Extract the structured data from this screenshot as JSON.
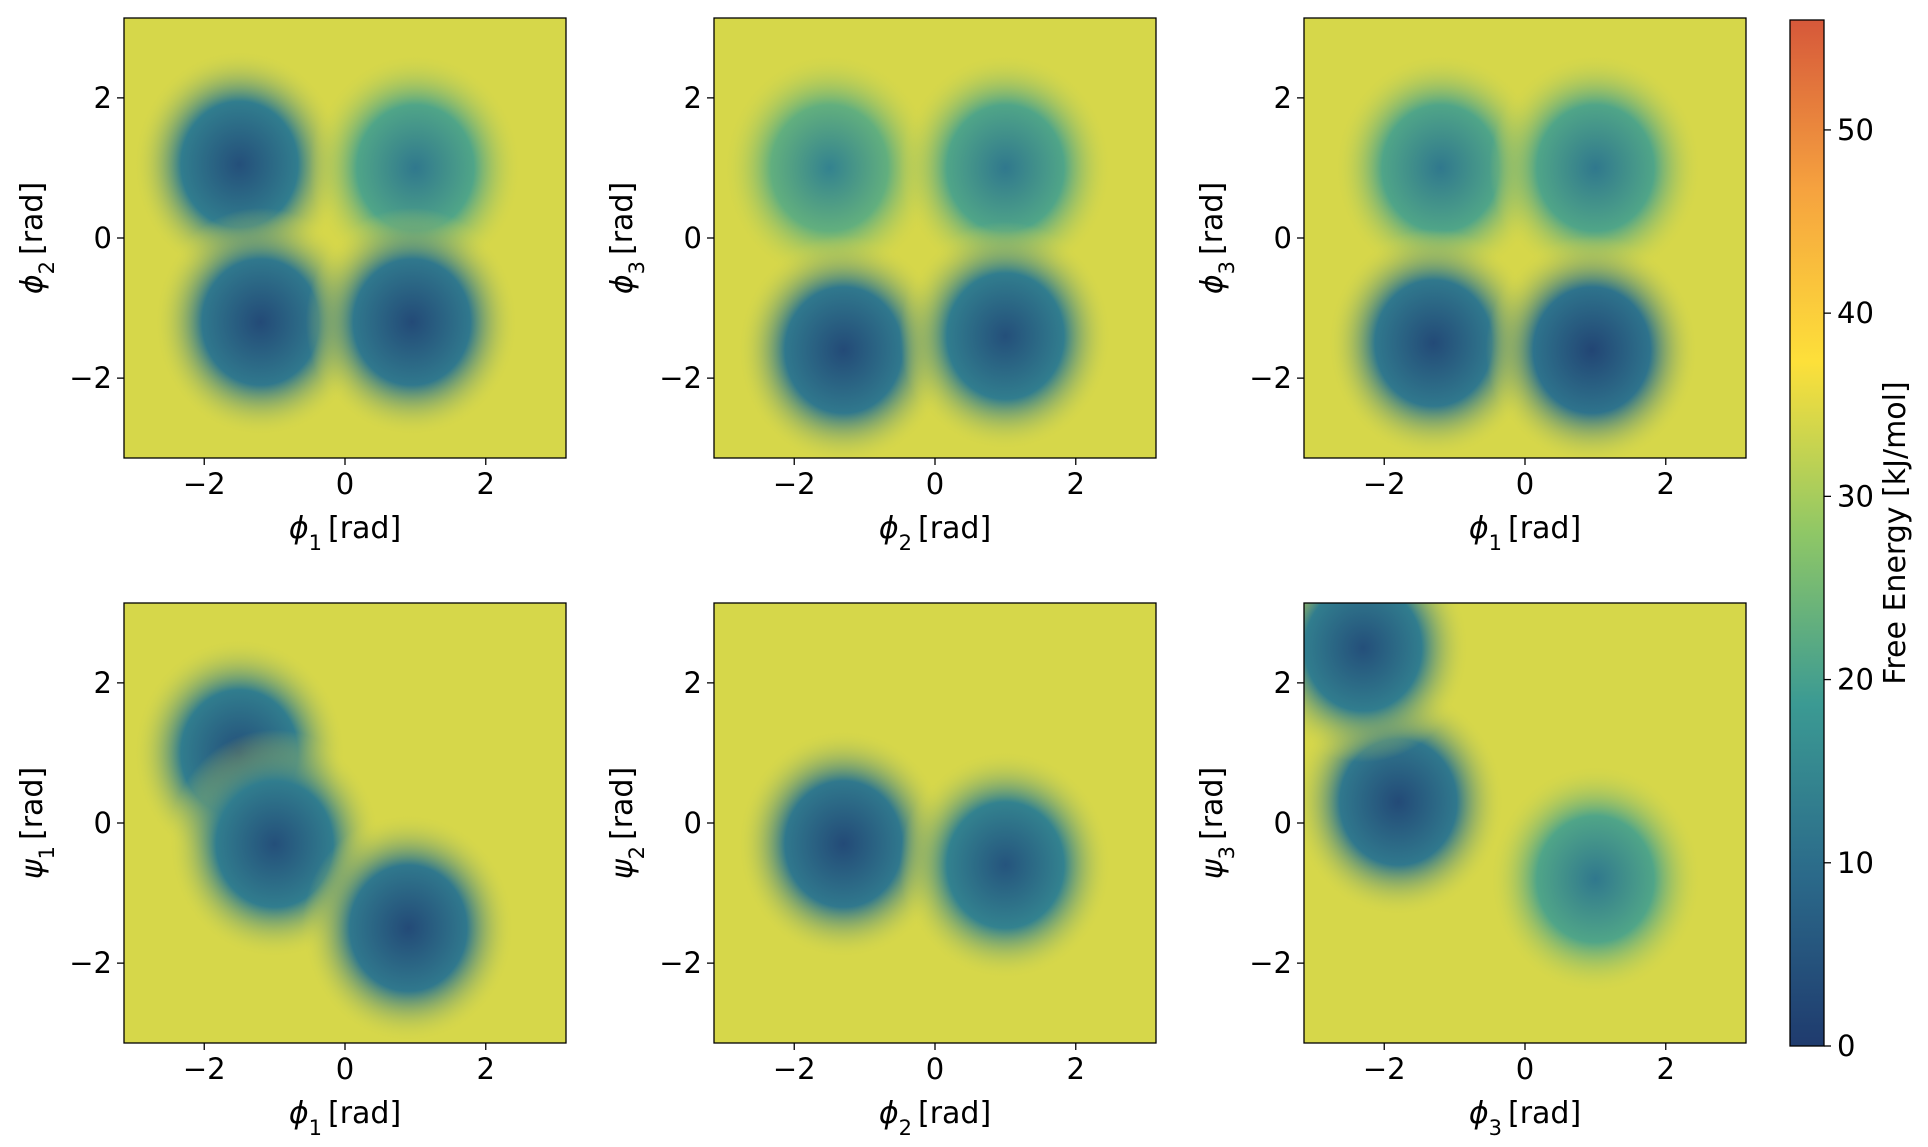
{
  "figure": {
    "colormap": [
      "#1f3b6e",
      "#2b6a8a",
      "#3b9a93",
      "#8fc766",
      "#fde03a",
      "#f6a33f",
      "#d6583a"
    ],
    "background": "#ffffff"
  },
  "colorbar": {
    "label": "Free Energy [kJ/mol]",
    "range": [
      0,
      56
    ],
    "ticks": [
      0,
      10,
      20,
      30,
      40,
      50
    ],
    "tick_labels": [
      "0",
      "10",
      "20",
      "30",
      "40",
      "50"
    ]
  },
  "chart_data": [
    {
      "type": "heatmap",
      "xlabel": "ϕ1 [rad]",
      "ylabel": "ϕ2 [rad]",
      "x_symbol": "ϕ",
      "x_sub": "1",
      "y_symbol": "ϕ",
      "y_sub": "2",
      "xlim": [
        -3.14,
        3.14
      ],
      "ylim": [
        -3.14,
        3.14
      ],
      "xticks": [
        -2,
        0,
        2
      ],
      "yticks": [
        -2,
        0,
        2
      ],
      "tick_labels": [
        "−2",
        "0",
        "2"
      ],
      "unit": "[rad]",
      "minima": [
        {
          "x": -1.5,
          "y": 1.05,
          "depth": 4
        },
        {
          "x": 1.0,
          "y": 1.0,
          "depth": 12
        },
        {
          "x": -1.2,
          "y": -1.2,
          "depth": 3
        },
        {
          "x": 0.95,
          "y": -1.2,
          "depth": 3
        }
      ]
    },
    {
      "type": "heatmap",
      "xlabel": "ϕ2 [rad]",
      "ylabel": "ϕ3 [rad]",
      "x_symbol": "ϕ",
      "x_sub": "2",
      "y_symbol": "ϕ",
      "y_sub": "3",
      "xlim": [
        -3.14,
        3.14
      ],
      "ylim": [
        -3.14,
        3.14
      ],
      "xticks": [
        -2,
        0,
        2
      ],
      "yticks": [
        -2,
        0,
        2
      ],
      "tick_labels": [
        "−2",
        "0",
        "2"
      ],
      "unit": "[rad]",
      "minima": [
        {
          "x": -1.5,
          "y": 1.0,
          "depth": 14
        },
        {
          "x": 1.0,
          "y": 1.0,
          "depth": 12
        },
        {
          "x": -1.3,
          "y": -1.6,
          "depth": 3
        },
        {
          "x": 1.0,
          "y": -1.4,
          "depth": 4
        }
      ]
    },
    {
      "type": "heatmap",
      "xlabel": "ϕ1 [rad]",
      "ylabel": "ϕ3 [rad]",
      "x_symbol": "ϕ",
      "x_sub": "1",
      "y_symbol": "ϕ",
      "y_sub": "3",
      "xlim": [
        -3.14,
        3.14
      ],
      "ylim": [
        -3.14,
        3.14
      ],
      "xticks": [
        -2,
        0,
        2
      ],
      "yticks": [
        -2,
        0,
        2
      ],
      "tick_labels": [
        "−2",
        "0",
        "2"
      ],
      "unit": "[rad]",
      "minima": [
        {
          "x": -1.2,
          "y": 1.0,
          "depth": 12
        },
        {
          "x": 1.0,
          "y": 1.0,
          "depth": 12
        },
        {
          "x": -1.3,
          "y": -1.5,
          "depth": 3
        },
        {
          "x": 0.95,
          "y": -1.6,
          "depth": 2
        }
      ]
    },
    {
      "type": "heatmap",
      "xlabel": "ϕ1 [rad]",
      "ylabel": "ψ1 [rad]",
      "x_symbol": "ϕ",
      "x_sub": "1",
      "y_symbol": "ψ",
      "y_sub": "1",
      "xlim": [
        -3.14,
        3.14
      ],
      "ylim": [
        -3.14,
        3.14
      ],
      "xticks": [
        -2,
        0,
        2
      ],
      "yticks": [
        -2,
        0,
        2
      ],
      "tick_labels": [
        "−2",
        "0",
        "2"
      ],
      "unit": "[rad]",
      "minima": [
        {
          "x": -1.5,
          "y": 1.0,
          "depth": 4
        },
        {
          "x": -1.0,
          "y": -0.3,
          "depth": 4
        },
        {
          "x": 0.9,
          "y": -1.5,
          "depth": 3
        }
      ]
    },
    {
      "type": "heatmap",
      "xlabel": "ϕ2 [rad]",
      "ylabel": "ψ2 [rad]",
      "x_symbol": "ϕ",
      "x_sub": "2",
      "y_symbol": "ψ",
      "y_sub": "2",
      "xlim": [
        -3.14,
        3.14
      ],
      "ylim": [
        -3.14,
        3.14
      ],
      "xticks": [
        -2,
        0,
        2
      ],
      "yticks": [
        -2,
        0,
        2
      ],
      "tick_labels": [
        "−2",
        "0",
        "2"
      ],
      "unit": "[rad]",
      "minima": [
        {
          "x": -1.3,
          "y": -0.3,
          "depth": 3
        },
        {
          "x": 1.0,
          "y": -0.6,
          "depth": 5
        }
      ]
    },
    {
      "type": "heatmap",
      "xlabel": "ϕ3 [rad]",
      "ylabel": "ψ3 [rad]",
      "x_symbol": "ϕ",
      "x_sub": "3",
      "y_symbol": "ψ",
      "y_sub": "3",
      "xlim": [
        -3.14,
        3.14
      ],
      "ylim": [
        -3.14,
        3.14
      ],
      "xticks": [
        -2,
        0,
        2
      ],
      "yticks": [
        -2,
        0,
        2
      ],
      "tick_labels": [
        "−2",
        "0",
        "2"
      ],
      "unit": "[rad]",
      "minima": [
        {
          "x": -1.8,
          "y": 0.3,
          "depth": 3
        },
        {
          "x": -2.3,
          "y": 2.5,
          "depth": 4
        },
        {
          "x": 1.0,
          "y": -0.8,
          "depth": 12
        }
      ]
    }
  ]
}
